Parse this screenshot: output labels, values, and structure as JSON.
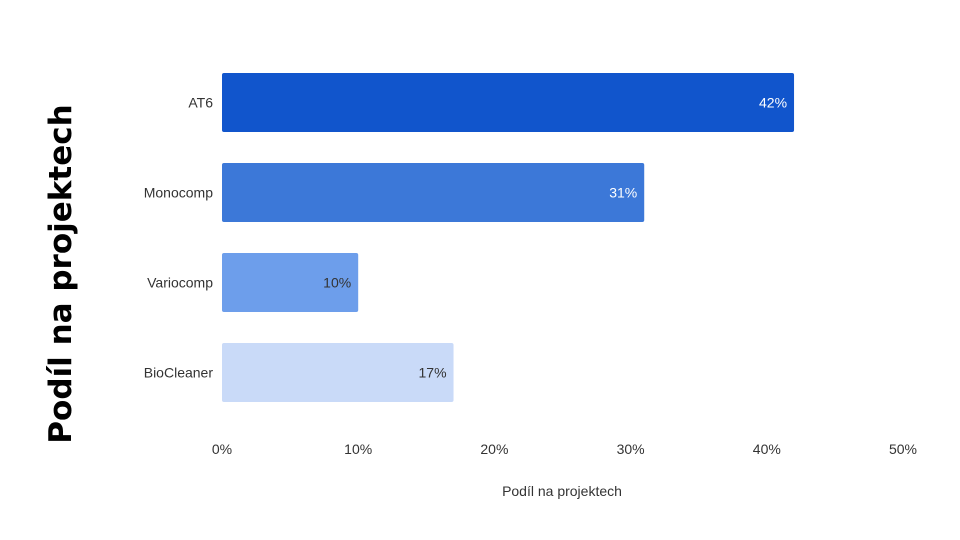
{
  "chart_data": {
    "type": "bar",
    "orientation": "horizontal",
    "categories": [
      "AT6",
      "Monocomp",
      "Variocomp",
      "BioCleaner"
    ],
    "values": [
      42,
      31,
      10,
      17
    ],
    "value_labels": [
      "42%",
      "31%",
      "10%",
      "17%"
    ],
    "bar_colors": [
      "#1155CC",
      "#3C78D8",
      "#6D9EEB",
      "#C9DAF8"
    ],
    "value_label_colors": [
      "#FFFFFF",
      "#FFFFFF",
      "#333333",
      "#333333"
    ],
    "xlim": [
      0,
      50
    ],
    "x_ticks": [
      0,
      10,
      20,
      30,
      40,
      50
    ],
    "x_tick_labels": [
      "0%",
      "10%",
      "20%",
      "30%",
      "40%",
      "50%"
    ],
    "xlabel": "Podíl na projektech",
    "side_title": "Podíl na projektech",
    "grid": false,
    "legend": "none"
  }
}
